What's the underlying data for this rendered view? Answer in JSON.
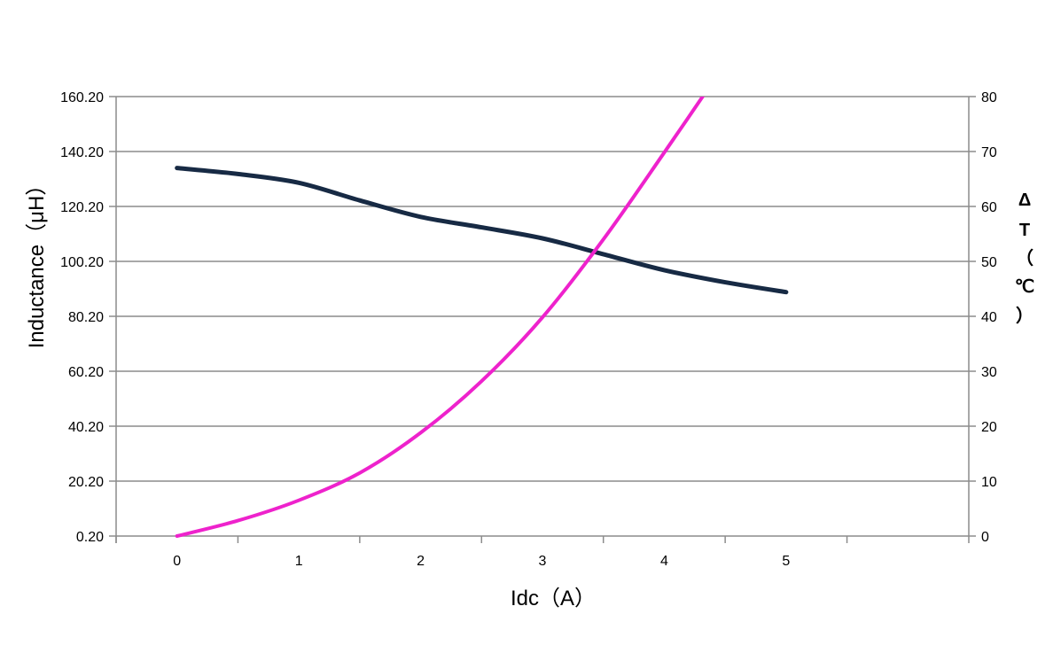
{
  "chart_data": {
    "type": "line",
    "title": "",
    "xlabel": "Idc（A）",
    "ylabel": "Inductance（μH）",
    "y2label_lines": [
      "Δ",
      "T",
      "（",
      "℃",
      "）"
    ],
    "x": [
      0,
      1,
      2,
      3,
      4,
      5
    ],
    "x_tick_labels": [
      "0",
      "1",
      "2",
      "3",
      "4",
      "5"
    ],
    "xlim": [
      -0.5,
      6.5
    ],
    "ylim": [
      0.2,
      160.2
    ],
    "y_ticks": [
      0.2,
      20.2,
      40.2,
      60.2,
      80.2,
      100.2,
      120.2,
      140.2,
      160.2
    ],
    "y_tick_labels": [
      "0.20",
      "20.20",
      "40.20",
      "60.20",
      "80.20",
      "100.20",
      "120.20",
      "140.20",
      "160.20"
    ],
    "y2lim": [
      0,
      80
    ],
    "y2_ticks": [
      0,
      10,
      20,
      30,
      40,
      50,
      60,
      70,
      80
    ],
    "y2_tick_labels": [
      "0",
      "10",
      "20",
      "30",
      "40",
      "50",
      "60",
      "70",
      "80"
    ],
    "grid": true,
    "series": [
      {
        "axis": "left",
        "color": "#172a44",
        "x": [
          0,
          0.5,
          1,
          1.5,
          2,
          2.5,
          3,
          3.5,
          4,
          4.5,
          5
        ],
        "values": [
          134.2,
          132.0,
          128.8,
          122.4,
          116.4,
          112.6,
          108.6,
          102.8,
          97.0,
          92.6,
          89.0
        ]
      },
      {
        "axis": "right",
        "color": "#ee22cc",
        "x": [
          0,
          0.5,
          1,
          1.5,
          2,
          2.5,
          3,
          3.5,
          4,
          4.5
        ],
        "values": [
          0,
          2.8,
          6.5,
          11.5,
          18.8,
          28.2,
          39.8,
          54.0,
          69.8,
          86.0
        ]
      }
    ]
  }
}
